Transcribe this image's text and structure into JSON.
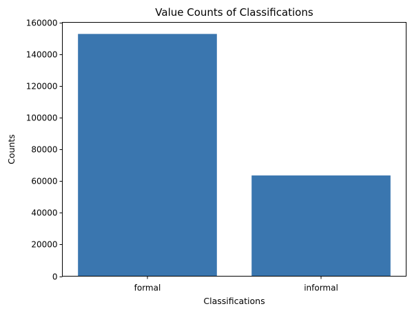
{
  "chart_data": {
    "type": "bar",
    "title": "Value Counts of Classifications",
    "xlabel": "Classifications",
    "ylabel": "Counts",
    "categories": [
      "formal",
      "informal"
    ],
    "values": [
      152700,
      63500
    ],
    "ylim": [
      0,
      160000
    ],
    "yticks": [
      0,
      20000,
      40000,
      60000,
      80000,
      100000,
      120000,
      140000,
      160000
    ],
    "grid": false,
    "bar_color": "#3a76af"
  }
}
